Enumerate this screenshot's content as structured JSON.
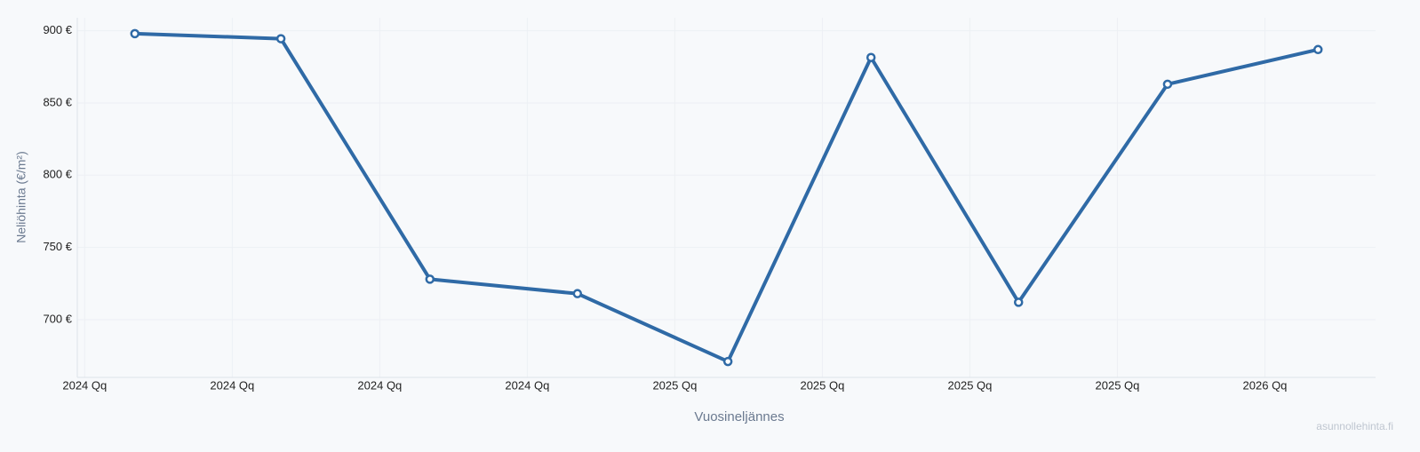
{
  "chart_data": {
    "type": "line",
    "x_label": "Vuosineljännes",
    "y_label": "Neliöhinta (€/m²)",
    "watermark": "asunnollehinta.fi",
    "x": [
      0.34,
      1.33,
      2.34,
      3.34,
      4.36,
      5.33,
      6.33,
      7.34,
      8.36
    ],
    "series": [
      {
        "name": "Neliöhinta",
        "color": "#2f6aa6",
        "values": [
          898,
          894.5,
          728,
          718,
          671,
          881.5,
          712,
          863,
          887
        ]
      }
    ],
    "xlim": [
      -0.05,
      8.75
    ],
    "xticks": [
      {
        "value": 0,
        "label": "2024 Qq"
      },
      {
        "value": 1,
        "label": "2024 Qq"
      },
      {
        "value": 2,
        "label": "2024 Qq"
      },
      {
        "value": 3,
        "label": "2024 Qq"
      },
      {
        "value": 4,
        "label": "2025 Qq"
      },
      {
        "value": 5,
        "label": "2025 Qq"
      },
      {
        "value": 6,
        "label": "2025 Qq"
      },
      {
        "value": 7,
        "label": "2025 Qq"
      },
      {
        "value": 8,
        "label": "2026 Qq"
      }
    ],
    "ylim": [
      660,
      909
    ],
    "yticks": [
      {
        "value": 700,
        "label": "700 €"
      },
      {
        "value": 750,
        "label": "750 €"
      },
      {
        "value": 800,
        "label": "800 €"
      },
      {
        "value": 850,
        "label": "850 €"
      },
      {
        "value": 900,
        "label": "900 €"
      }
    ],
    "grid": true
  }
}
